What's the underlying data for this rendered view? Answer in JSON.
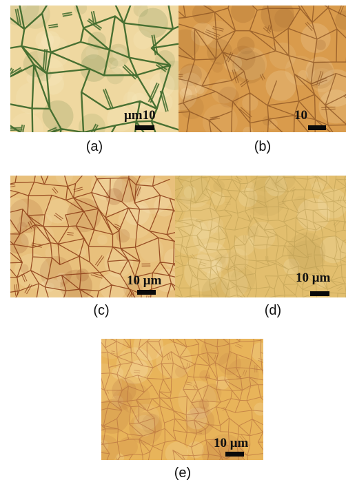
{
  "figure": {
    "panels": [
      {
        "id": "a",
        "caption": "(a)",
        "scale_label": "μm10"
      },
      {
        "id": "b",
        "caption": "(b)",
        "scale_label": "10"
      },
      {
        "id": "c",
        "caption": "(c)",
        "scale_label": "10 μm"
      },
      {
        "id": "d",
        "caption": "(d)",
        "scale_label": "10 μm"
      },
      {
        "id": "e",
        "caption": "(e)",
        "scale_label": "10 μm"
      }
    ]
  },
  "colors": {
    "panel_a_bg": "#efd8a0",
    "panel_a_boundary": "#3f6a2c",
    "panel_b_bg": "#d99b4c",
    "panel_b_boundary": "#8a5222",
    "panel_c_bg": "#e8c07c",
    "panel_c_boundary": "#8b3a14",
    "panel_d_bg": "#e2be6e",
    "panel_d_boundary": "#b89a50",
    "panel_e_bg": "#e8b45a",
    "panel_e_boundary": "#b0673a"
  }
}
